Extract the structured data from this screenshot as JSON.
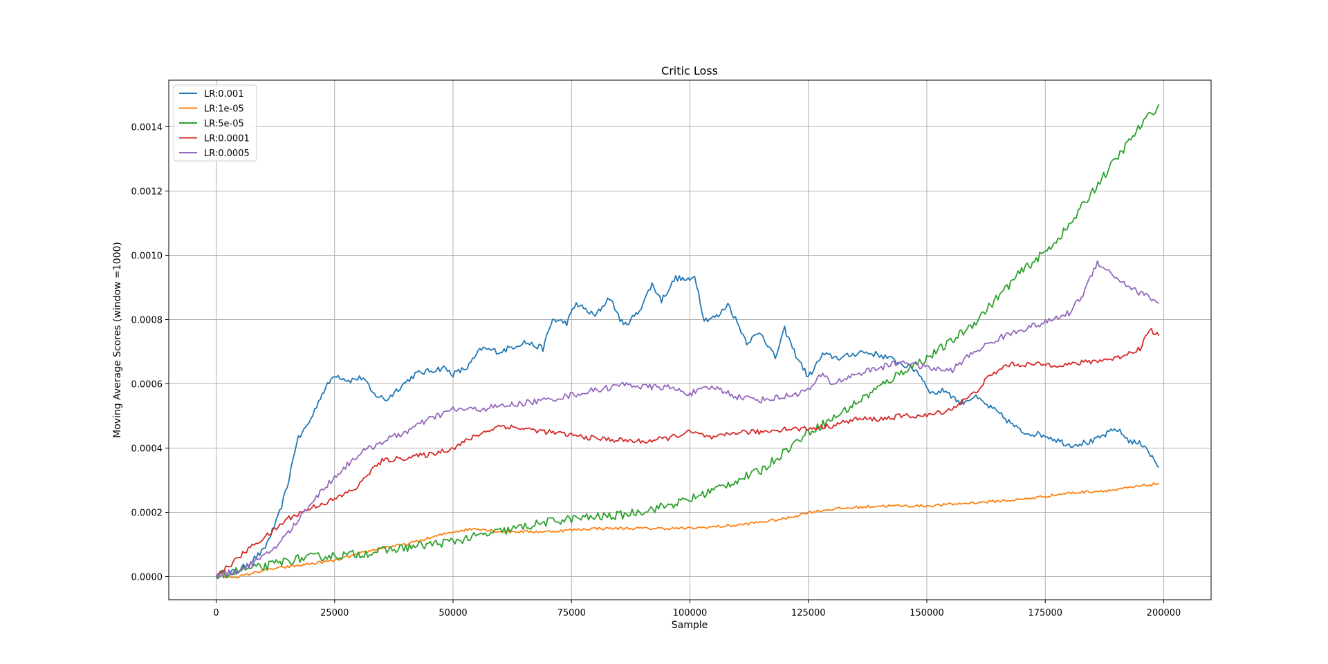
{
  "chart_data": {
    "type": "line",
    "title": "Critic Loss",
    "xlabel": "Sample",
    "ylabel": "Moving Average Scores (window =1000)",
    "xlim": [
      -10000,
      210000
    ],
    "ylim": [
      -7.2e-05,
      0.001545
    ],
    "xticks": [
      0,
      25000,
      50000,
      75000,
      100000,
      125000,
      150000,
      175000,
      200000
    ],
    "yticks": [
      0.0,
      0.0002,
      0.0004,
      0.0006,
      0.0008,
      0.001,
      0.0012,
      0.0014
    ],
    "ytick_labels": [
      "0.0000",
      "0.0002",
      "0.0004",
      "0.0006",
      "0.0008",
      "0.0010",
      "0.0012",
      "0.0014"
    ],
    "grid": true,
    "legend_position": "upper-left",
    "series": [
      {
        "name": "LR:0.001",
        "color": "#1f77b4",
        "x": [
          0,
          5000,
          10000,
          13000,
          15000,
          17000,
          20000,
          22000,
          25000,
          28000,
          31000,
          33000,
          36000,
          38000,
          42000,
          45000,
          48000,
          50000,
          53000,
          56000,
          60000,
          65000,
          69000,
          71000,
          74000,
          76000,
          80000,
          83000,
          86000,
          89000,
          92000,
          94000,
          97000,
          100000,
          101000,
          103000,
          106000,
          108000,
          112000,
          115000,
          118000,
          120000,
          122000,
          125000,
          128000,
          132000,
          136000,
          140000,
          142000,
          145000,
          148000,
          151000,
          154000,
          157000,
          160000,
          165000,
          170000,
          175000,
          180000,
          185000,
          190000,
          193000,
          196000,
          198000,
          199000
        ],
        "y": [
          0.0,
          2e-05,
          8e-05,
          0.00018,
          0.00028,
          0.00042,
          0.00049,
          0.00056,
          0.00063,
          0.00061,
          0.00062,
          0.00057,
          0.00055,
          0.00058,
          0.00063,
          0.00064,
          0.00065,
          0.00063,
          0.00065,
          0.00071,
          0.0007,
          0.00073,
          0.00071,
          0.0008,
          0.00079,
          0.00085,
          0.00081,
          0.00087,
          0.00078,
          0.00082,
          0.00091,
          0.00086,
          0.00093,
          0.00092,
          0.00094,
          0.0008,
          0.00081,
          0.00085,
          0.00073,
          0.00076,
          0.00068,
          0.00077,
          0.0007,
          0.00062,
          0.00069,
          0.00068,
          0.0007,
          0.00069,
          0.00068,
          0.00066,
          0.00064,
          0.00057,
          0.00058,
          0.00054,
          0.00056,
          0.00051,
          0.00045,
          0.00044,
          0.00041,
          0.00042,
          0.00046,
          0.00042,
          0.00041,
          0.00036,
          0.00034
        ]
      },
      {
        "name": "LR:1e-05",
        "color": "#ff7f0e",
        "x": [
          0,
          5000,
          10000,
          15000,
          20000,
          25000,
          30000,
          35000,
          40000,
          45000,
          50000,
          55000,
          60000,
          70000,
          80000,
          90000,
          100000,
          110000,
          120000,
          125000,
          130000,
          140000,
          150000,
          160000,
          170000,
          180000,
          190000,
          199000
        ],
        "y": [
          0.0,
          0.0,
          2e-05,
          3e-05,
          4e-05,
          5e-05,
          7e-05,
          9e-05,
          0.0001,
          0.00012,
          0.00014,
          0.00015,
          0.00014,
          0.00014,
          0.00015,
          0.00015,
          0.00015,
          0.00016,
          0.00018,
          0.0002,
          0.00021,
          0.00022,
          0.00022,
          0.00023,
          0.00024,
          0.00026,
          0.00027,
          0.00029
        ]
      },
      {
        "name": "LR:5e-05",
        "color": "#2ca02c",
        "x": [
          0,
          5000,
          10000,
          15000,
          20000,
          25000,
          30000,
          40000,
          50000,
          60000,
          70000,
          75000,
          85000,
          95000,
          100000,
          105000,
          110000,
          115000,
          120000,
          125000,
          130000,
          135000,
          140000,
          145000,
          150000,
          155000,
          160000,
          165000,
          170000,
          175000,
          180000,
          185000,
          190000,
          195000,
          199000
        ],
        "y": [
          0.0,
          2e-05,
          3e-05,
          5e-05,
          6e-05,
          6.5e-05,
          7e-05,
          9e-05,
          0.00011,
          0.00014,
          0.00017,
          0.00018,
          0.00019,
          0.00022,
          0.00024,
          0.00027,
          0.0003,
          0.00033,
          0.00039,
          0.00045,
          0.00049,
          0.00054,
          0.00059,
          0.00064,
          0.00068,
          0.00073,
          0.00079,
          0.00087,
          0.00095,
          0.00101,
          0.00109,
          0.0012,
          0.0013,
          0.0014,
          0.00147
        ]
      },
      {
        "name": "LR:0.0001",
        "color": "#d62728",
        "x": [
          0,
          4000,
          8000,
          12000,
          15000,
          18000,
          21000,
          25000,
          30000,
          32000,
          35000,
          40000,
          45000,
          50000,
          55000,
          60000,
          65000,
          70000,
          75000,
          80000,
          90000,
          95000,
          100000,
          105000,
          110000,
          115000,
          120000,
          125000,
          130000,
          135000,
          140000,
          145000,
          150000,
          155000,
          160000,
          163000,
          167000,
          170000,
          175000,
          180000,
          185000,
          190000,
          195000,
          197000,
          199000
        ],
        "y": [
          0.0,
          5e-05,
          0.0001,
          0.00014,
          0.00018,
          0.0002,
          0.00022,
          0.00024,
          0.00028,
          0.00032,
          0.00036,
          0.00037,
          0.00038,
          0.0004,
          0.00044,
          0.00047,
          0.00046,
          0.00045,
          0.00044,
          0.00043,
          0.00042,
          0.00043,
          0.00045,
          0.00043,
          0.00045,
          0.00045,
          0.00046,
          0.00046,
          0.00047,
          0.00049,
          0.00049,
          0.0005,
          0.0005,
          0.00052,
          0.00057,
          0.00062,
          0.00066,
          0.00066,
          0.00066,
          0.00066,
          0.00067,
          0.00068,
          0.00071,
          0.00077,
          0.00075
        ]
      },
      {
        "name": "LR:0.0005",
        "color": "#9467bd",
        "x": [
          0,
          5000,
          10000,
          13000,
          16000,
          20000,
          25000,
          30000,
          35000,
          40000,
          45000,
          50000,
          55000,
          60000,
          70000,
          80000,
          87000,
          90000,
          95000,
          100000,
          105000,
          110000,
          115000,
          120000,
          125000,
          128000,
          130000,
          135000,
          140000,
          145000,
          150000,
          155000,
          160000,
          165000,
          170000,
          175000,
          180000,
          183000,
          186000,
          190000,
          194000,
          197000,
          199000
        ],
        "y": [
          0.0,
          2e-05,
          6e-05,
          0.0001,
          0.00015,
          0.00023,
          0.00031,
          0.00038,
          0.00042,
          0.00045,
          0.00049,
          0.00052,
          0.00052,
          0.00053,
          0.00055,
          0.00058,
          0.0006,
          0.00059,
          0.00059,
          0.00057,
          0.00059,
          0.00056,
          0.00055,
          0.00056,
          0.00058,
          0.00063,
          0.0006,
          0.00063,
          0.00065,
          0.00067,
          0.00065,
          0.00064,
          0.0007,
          0.00074,
          0.00077,
          0.00079,
          0.00082,
          0.00088,
          0.00098,
          0.00093,
          0.00089,
          0.00087,
          0.00085
        ]
      }
    ]
  }
}
